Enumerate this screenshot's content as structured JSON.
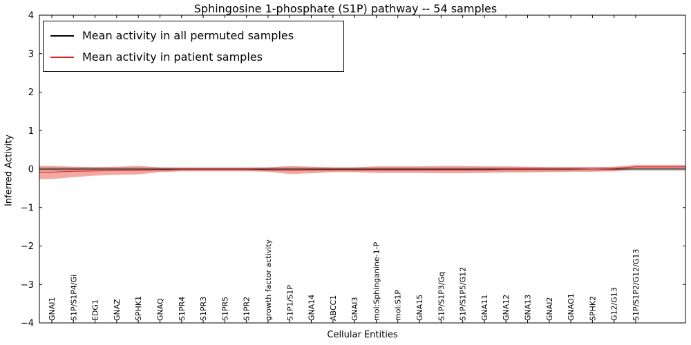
{
  "chart_data": {
    "type": "line",
    "title": "Sphingosine 1-phosphate (S1P) pathway -- 54 samples",
    "xlabel": "Cellular Entities",
    "ylabel": "Inferred Activity",
    "ylim": [
      -4,
      4
    ],
    "yticks": [
      4,
      3,
      2,
      1,
      0,
      -1,
      -2,
      -3,
      -4
    ],
    "ytick_labels": [
      "4",
      "3",
      "2",
      "1",
      "0",
      "−1",
      "−2",
      "−3",
      "−4"
    ],
    "grid": false,
    "legend_position": "upper left",
    "categories": [
      "GNAI1",
      "S1P/S1P4/Gi",
      "EDG1",
      "GNAZ",
      "SPHK1",
      "GNAQ",
      "S1PR4",
      "S1PR3",
      "S1PR5",
      "S1PR2",
      "growth factor activity",
      "S1P1/S1P",
      "GNA14",
      "ABCC1",
      "GNAI3",
      "mol:Sphinganine-1-P",
      "mol:S1P",
      "GNA15",
      "S1P/S1P3/Gq",
      "S1P/S1P5/G12",
      "GNA11",
      "GNA12",
      "GNA13",
      "GNAI2",
      "GNAO1",
      "SPHK2",
      "G12/G13",
      "S1P/S1P2/G12/G13"
    ],
    "series": [
      {
        "name": "Mean activity in all permuted samples",
        "color": "#000000",
        "band_color": "#999999",
        "values": [
          0,
          0,
          0,
          0,
          0,
          0,
          0,
          0,
          0,
          0,
          0,
          0,
          0,
          0,
          0,
          0,
          0,
          0,
          0,
          0,
          0,
          0,
          0,
          0,
          0,
          0,
          0,
          0
        ],
        "band_upper": [
          0.06,
          0.06,
          0.06,
          0.06,
          0.06,
          0.06,
          0.06,
          0.06,
          0.06,
          0.06,
          0.06,
          0.06,
          0.06,
          0.06,
          0.06,
          0.06,
          0.06,
          0.06,
          0.06,
          0.06,
          0.06,
          0.06,
          0.06,
          0.06,
          0.06,
          0.06,
          0.06,
          0.06
        ],
        "band_lower": [
          -0.06,
          -0.06,
          -0.06,
          -0.06,
          -0.06,
          -0.06,
          -0.06,
          -0.06,
          -0.06,
          -0.06,
          -0.06,
          -0.06,
          -0.06,
          -0.06,
          -0.06,
          -0.06,
          -0.06,
          -0.06,
          -0.06,
          -0.06,
          -0.06,
          -0.06,
          -0.06,
          -0.06,
          -0.06,
          -0.06,
          -0.06,
          -0.06
        ]
      },
      {
        "name": "Mean activity in patient samples",
        "color": "#e02222",
        "band_color": "#e04030",
        "values": [
          -0.08,
          -0.06,
          -0.05,
          -0.04,
          -0.03,
          -0.02,
          -0.01,
          -0.01,
          -0.01,
          -0.01,
          -0.02,
          -0.03,
          -0.02,
          -0.02,
          -0.02,
          -0.02,
          -0.02,
          -0.02,
          -0.02,
          -0.02,
          -0.02,
          -0.01,
          -0.01,
          -0.01,
          -0.01,
          0.0,
          0.01,
          0.06
        ],
        "band_upper": [
          0.08,
          0.06,
          0.05,
          0.06,
          0.08,
          0.04,
          0.03,
          0.03,
          0.03,
          0.03,
          0.04,
          0.08,
          0.06,
          0.04,
          0.04,
          0.07,
          0.07,
          0.07,
          0.08,
          0.08,
          0.07,
          0.07,
          0.06,
          0.05,
          0.05,
          0.05,
          0.06,
          0.11
        ],
        "band_lower": [
          -0.26,
          -0.21,
          -0.17,
          -0.15,
          -0.14,
          -0.08,
          -0.06,
          -0.06,
          -0.06,
          -0.06,
          -0.07,
          -0.13,
          -0.11,
          -0.08,
          -0.08,
          -0.1,
          -0.1,
          -0.1,
          -0.11,
          -0.11,
          -0.1,
          -0.09,
          -0.09,
          -0.08,
          -0.07,
          -0.07,
          -0.06,
          0.01
        ]
      }
    ]
  }
}
